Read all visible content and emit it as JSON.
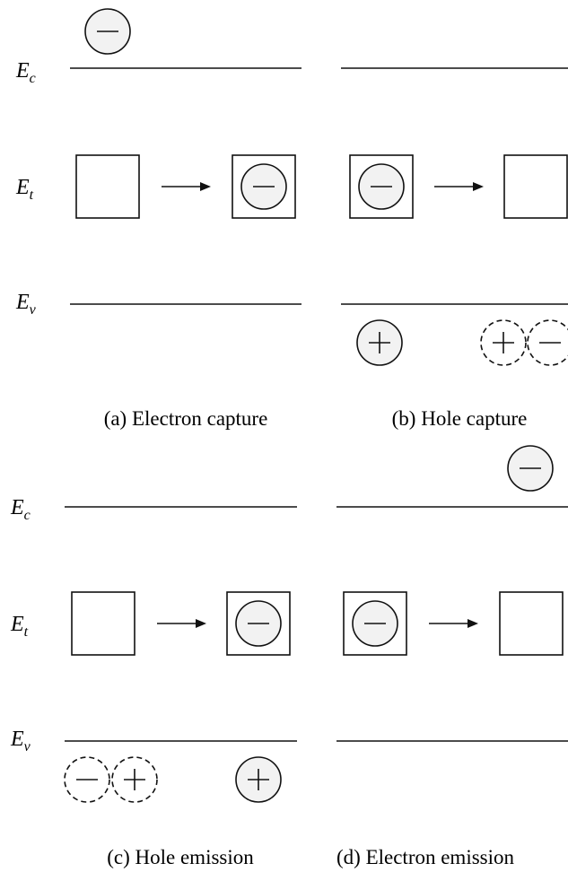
{
  "levels": [
    {
      "symbol": "E",
      "subscript": "c"
    },
    {
      "symbol": "E",
      "subscript": "t"
    },
    {
      "symbol": "E",
      "subscript": "v"
    }
  ],
  "panels": [
    {
      "caption": "(a) Electron capture"
    },
    {
      "caption": "(b) Hole capture"
    },
    {
      "caption": "(c) Hole emission"
    },
    {
      "caption": "(d) Electron emission"
    }
  ]
}
